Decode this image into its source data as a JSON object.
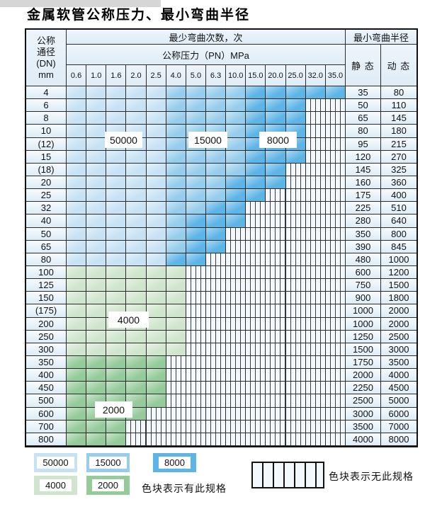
{
  "title": "金属软管公称压力、最小弯曲半径",
  "header": {
    "dn_lines": [
      "公称",
      "通径",
      "(DN)",
      "mm"
    ],
    "bend_cycles": "最少弯曲次数，次",
    "pressure_title": "公称压力（PN）MPa",
    "min_radius": "最小弯曲半径",
    "static_label": "静 态",
    "dynamic_label": "动 态",
    "pressures": [
      "0.6",
      "1.0",
      "1.6",
      "2.0",
      "2.5",
      "4.0",
      "5.0",
      "6.3",
      "10.0",
      "15.0",
      "20.0",
      "25.0",
      "32.0",
      "35.0"
    ]
  },
  "cycle_colors": {
    "50000": "#c7e2f4",
    "15000": "#96cdec",
    "8000": "#5db4e6",
    "4000": "#d0e5cd",
    "2000": "#95ca9a"
  },
  "rows": [
    {
      "dn": "4",
      "static": "35",
      "dynamic": "80",
      "zones": [
        [
          0,
          4,
          "50000"
        ],
        [
          5,
          8,
          "15000"
        ],
        [
          9,
          13,
          "8000"
        ]
      ]
    },
    {
      "dn": "6",
      "static": "50",
      "dynamic": "110",
      "zones": [
        [
          0,
          4,
          "50000"
        ],
        [
          5,
          8,
          "15000"
        ],
        [
          9,
          11,
          "8000"
        ]
      ]
    },
    {
      "dn": "8",
      "static": "65",
      "dynamic": "145",
      "zones": [
        [
          0,
          4,
          "50000"
        ],
        [
          5,
          8,
          "15000"
        ],
        [
          9,
          11,
          "8000"
        ]
      ]
    },
    {
      "dn": "10",
      "static": "80",
      "dynamic": "180",
      "zones": [
        [
          0,
          4,
          "50000"
        ],
        [
          5,
          8,
          "15000"
        ],
        [
          9,
          11,
          "8000"
        ]
      ]
    },
    {
      "dn": "(12)",
      "static": "95",
      "dynamic": "215",
      "zones": [
        [
          0,
          4,
          "50000"
        ],
        [
          5,
          8,
          "15000"
        ],
        [
          9,
          11,
          "8000"
        ]
      ]
    },
    {
      "dn": "15",
      "static": "120",
      "dynamic": "270",
      "zones": [
        [
          0,
          4,
          "50000"
        ],
        [
          5,
          8,
          "15000"
        ],
        [
          9,
          11,
          "8000"
        ]
      ]
    },
    {
      "dn": "(18)",
      "static": "145",
      "dynamic": "325",
      "zones": [
        [
          0,
          4,
          "50000"
        ],
        [
          5,
          8,
          "15000"
        ],
        [
          9,
          10,
          "8000"
        ]
      ]
    },
    {
      "dn": "20",
      "static": "160",
      "dynamic": "360",
      "zones": [
        [
          0,
          4,
          "50000"
        ],
        [
          5,
          7,
          "15000"
        ],
        [
          8,
          10,
          "8000"
        ]
      ]
    },
    {
      "dn": "25",
      "static": "175",
      "dynamic": "400",
      "zones": [
        [
          0,
          4,
          "50000"
        ],
        [
          5,
          7,
          "15000"
        ],
        [
          8,
          9,
          "8000"
        ]
      ]
    },
    {
      "dn": "32",
      "static": "225",
      "dynamic": "510",
      "zones": [
        [
          0,
          4,
          "50000"
        ],
        [
          5,
          6,
          "15000"
        ],
        [
          7,
          8,
          "8000"
        ]
      ]
    },
    {
      "dn": "40",
      "static": "280",
      "dynamic": "640",
      "zones": [
        [
          0,
          4,
          "50000"
        ],
        [
          5,
          5,
          "15000"
        ],
        [
          6,
          8,
          "8000"
        ]
      ]
    },
    {
      "dn": "50",
      "static": "350",
      "dynamic": "800",
      "zones": [
        [
          0,
          4,
          "50000"
        ],
        [
          5,
          5,
          "15000"
        ],
        [
          6,
          7,
          "8000"
        ]
      ]
    },
    {
      "dn": "65",
      "static": "390",
      "dynamic": "845",
      "zones": [
        [
          0,
          4,
          "50000"
        ],
        [
          5,
          5,
          "15000"
        ],
        [
          6,
          7,
          "8000"
        ]
      ]
    },
    {
      "dn": "80",
      "static": "480",
      "dynamic": "1000",
      "zones": [
        [
          0,
          4,
          "50000"
        ],
        [
          5,
          6,
          "8000"
        ]
      ]
    },
    {
      "dn": "100",
      "static": "600",
      "dynamic": "1200",
      "zones": [
        [
          0,
          5,
          "4000"
        ]
      ]
    },
    {
      "dn": "125",
      "static": "750",
      "dynamic": "1500",
      "zones": [
        [
          0,
          5,
          "4000"
        ]
      ]
    },
    {
      "dn": "150",
      "static": "900",
      "dynamic": "1800",
      "zones": [
        [
          0,
          5,
          "4000"
        ]
      ]
    },
    {
      "dn": "(175)",
      "static": "1000",
      "dynamic": "2000",
      "zones": [
        [
          0,
          5,
          "4000"
        ]
      ]
    },
    {
      "dn": "200",
      "static": "1000",
      "dynamic": "2000",
      "zones": [
        [
          0,
          5,
          "4000"
        ]
      ]
    },
    {
      "dn": "250",
      "static": "1250",
      "dynamic": "2500",
      "zones": [
        [
          0,
          5,
          "4000"
        ]
      ]
    },
    {
      "dn": "300",
      "static": "1500",
      "dynamic": "3000",
      "zones": [
        [
          0,
          5,
          "4000"
        ]
      ]
    },
    {
      "dn": "350",
      "static": "1750",
      "dynamic": "3500",
      "zones": [
        [
          0,
          4,
          "2000"
        ]
      ]
    },
    {
      "dn": "400",
      "static": "2000",
      "dynamic": "4000",
      "zones": [
        [
          0,
          4,
          "2000"
        ]
      ]
    },
    {
      "dn": "450",
      "static": "2250",
      "dynamic": "4500",
      "zones": [
        [
          0,
          4,
          "2000"
        ]
      ]
    },
    {
      "dn": "500",
      "static": "2500",
      "dynamic": "5000",
      "zones": [
        [
          0,
          4,
          "2000"
        ]
      ]
    },
    {
      "dn": "600",
      "static": "3000",
      "dynamic": "6000",
      "zones": [
        [
          0,
          3,
          "2000"
        ]
      ]
    },
    {
      "dn": "700",
      "static": "3500",
      "dynamic": "7000",
      "zones": [
        [
          0,
          2,
          "2000"
        ]
      ]
    },
    {
      "dn": "800",
      "static": "4000",
      "dynamic": "8000",
      "zones": [
        [
          0,
          2,
          "2000"
        ]
      ]
    }
  ],
  "cycle_labels": [
    "50000",
    "15000",
    "8000",
    "4000",
    "2000"
  ],
  "legend": {
    "swatches": [
      "50000",
      "15000",
      "8000",
      "4000",
      "2000"
    ],
    "has_spec": "色块表示有此规格",
    "no_spec": "色块表示无此规格"
  }
}
